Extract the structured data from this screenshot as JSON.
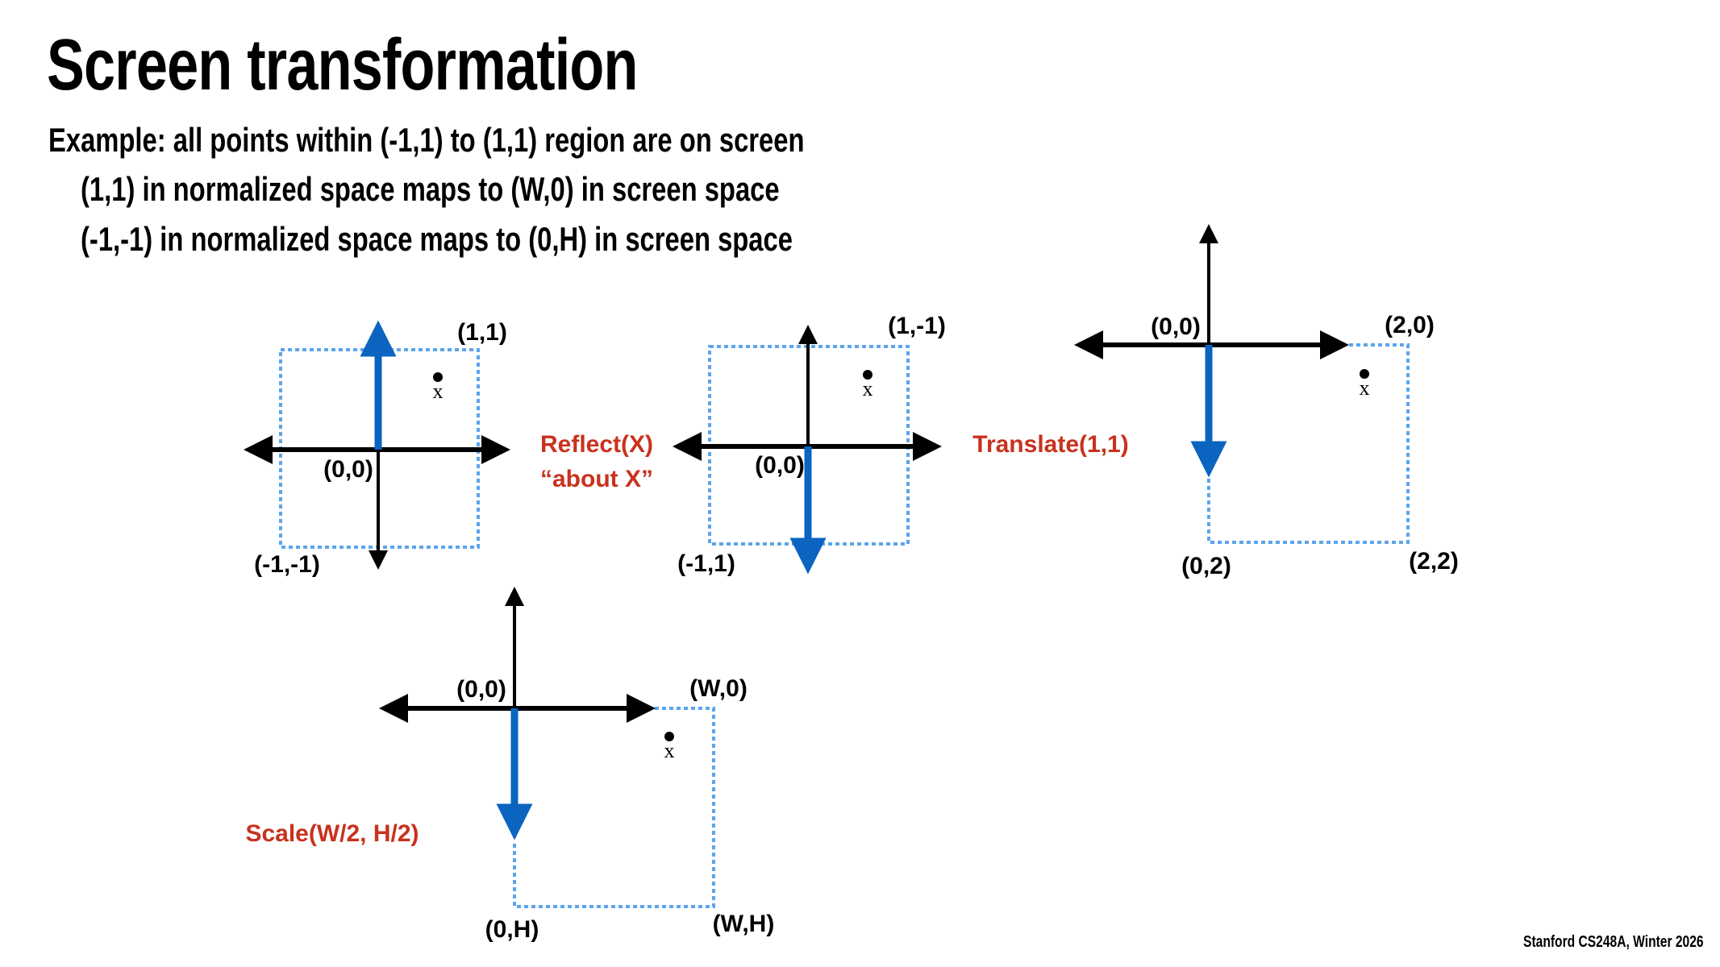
{
  "slide": {
    "title": "Screen transformation",
    "lines": [
      "Example: all points within (-1,1) to (1,1) region are on screen",
      "(1,1) in normalized space maps to (W,0) in screen space",
      "(-1,-1) in normalized space maps to (0,H) in screen space"
    ],
    "footer": "Stanford CS248A, Winter 2026"
  },
  "colors": {
    "axis": "#000000",
    "highlight_axis": "#0a64c0",
    "region_border": "#5aa5ec",
    "operation_label": "#c8321e"
  },
  "diagrams": [
    {
      "labels": {
        "corner_top": "(1,1)",
        "origin": "(0,0)",
        "corner_bottom": "(-1,-1)",
        "point": "x"
      }
    },
    {
      "labels": {
        "corner_top": "(1,-1)",
        "origin": "(0,0)",
        "corner_bottom": "(-1,1)",
        "point": "x"
      }
    },
    {
      "labels": {
        "corner_top": "(2,0)",
        "origin": "(0,0)",
        "corner_bottom_left": "(0,2)",
        "corner_bottom": "(2,2)",
        "point": "x"
      }
    },
    {
      "labels": {
        "corner_top": "(W,0)",
        "origin": "(0,0)",
        "corner_bottom_left": "(0,H)",
        "corner_bottom": "(W,H)",
        "point": "x"
      }
    }
  ],
  "operations": {
    "reflect": "Reflect(X)",
    "reflect_note": "“about X”",
    "translate": "Translate(1,1)",
    "scale": "Scale(W/2, H/2)"
  }
}
